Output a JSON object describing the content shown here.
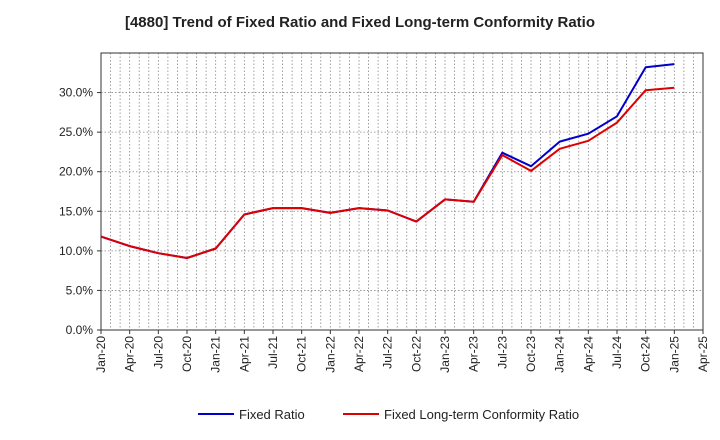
{
  "chart_data": {
    "type": "line",
    "title": "[4880]  Trend of Fixed Ratio and Fixed Long-term Conformity Ratio",
    "xlabel": "",
    "ylabel": "",
    "x": [
      "Jan-20",
      "Apr-20",
      "Jul-20",
      "Oct-20",
      "Jan-21",
      "Apr-21",
      "Jul-21",
      "Oct-21",
      "Jan-22",
      "Apr-22",
      "Jul-22",
      "Oct-22",
      "Jan-23",
      "Apr-23",
      "Jul-23",
      "Oct-23",
      "Jan-24",
      "Apr-24",
      "Jul-24",
      "Oct-24",
      "Jan-25"
    ],
    "x_ticks": [
      "Jan-20",
      "Apr-20",
      "Jul-20",
      "Oct-20",
      "Jan-21",
      "Apr-21",
      "Jul-21",
      "Oct-21",
      "Jan-22",
      "Apr-22",
      "Jul-22",
      "Oct-22",
      "Jan-23",
      "Apr-23",
      "Jul-23",
      "Oct-23",
      "Jan-24",
      "Apr-24",
      "Jul-24",
      "Oct-24",
      "Jan-25",
      "Apr-25"
    ],
    "y_ticks": [
      "0.0%",
      "5.0%",
      "10.0%",
      "15.0%",
      "20.0%",
      "25.0%",
      "30.0%"
    ],
    "ylim": [
      0,
      35
    ],
    "grid": true,
    "legend_position": "bottom",
    "series": [
      {
        "name": "Fixed Ratio",
        "color": "#0000cc",
        "values": [
          11.8,
          10.6,
          9.7,
          9.1,
          10.3,
          14.6,
          15.4,
          15.4,
          14.8,
          15.4,
          15.1,
          13.7,
          16.5,
          16.2,
          22.4,
          20.7,
          23.8,
          24.8,
          27.0,
          33.2,
          33.6
        ]
      },
      {
        "name": "Fixed Long-term Conformity Ratio",
        "color": "#dd0000",
        "values": [
          11.8,
          10.6,
          9.7,
          9.1,
          10.3,
          14.6,
          15.4,
          15.4,
          14.8,
          15.4,
          15.1,
          13.7,
          16.5,
          16.2,
          22.1,
          20.1,
          22.9,
          23.9,
          26.2,
          30.3,
          30.6
        ]
      }
    ]
  }
}
